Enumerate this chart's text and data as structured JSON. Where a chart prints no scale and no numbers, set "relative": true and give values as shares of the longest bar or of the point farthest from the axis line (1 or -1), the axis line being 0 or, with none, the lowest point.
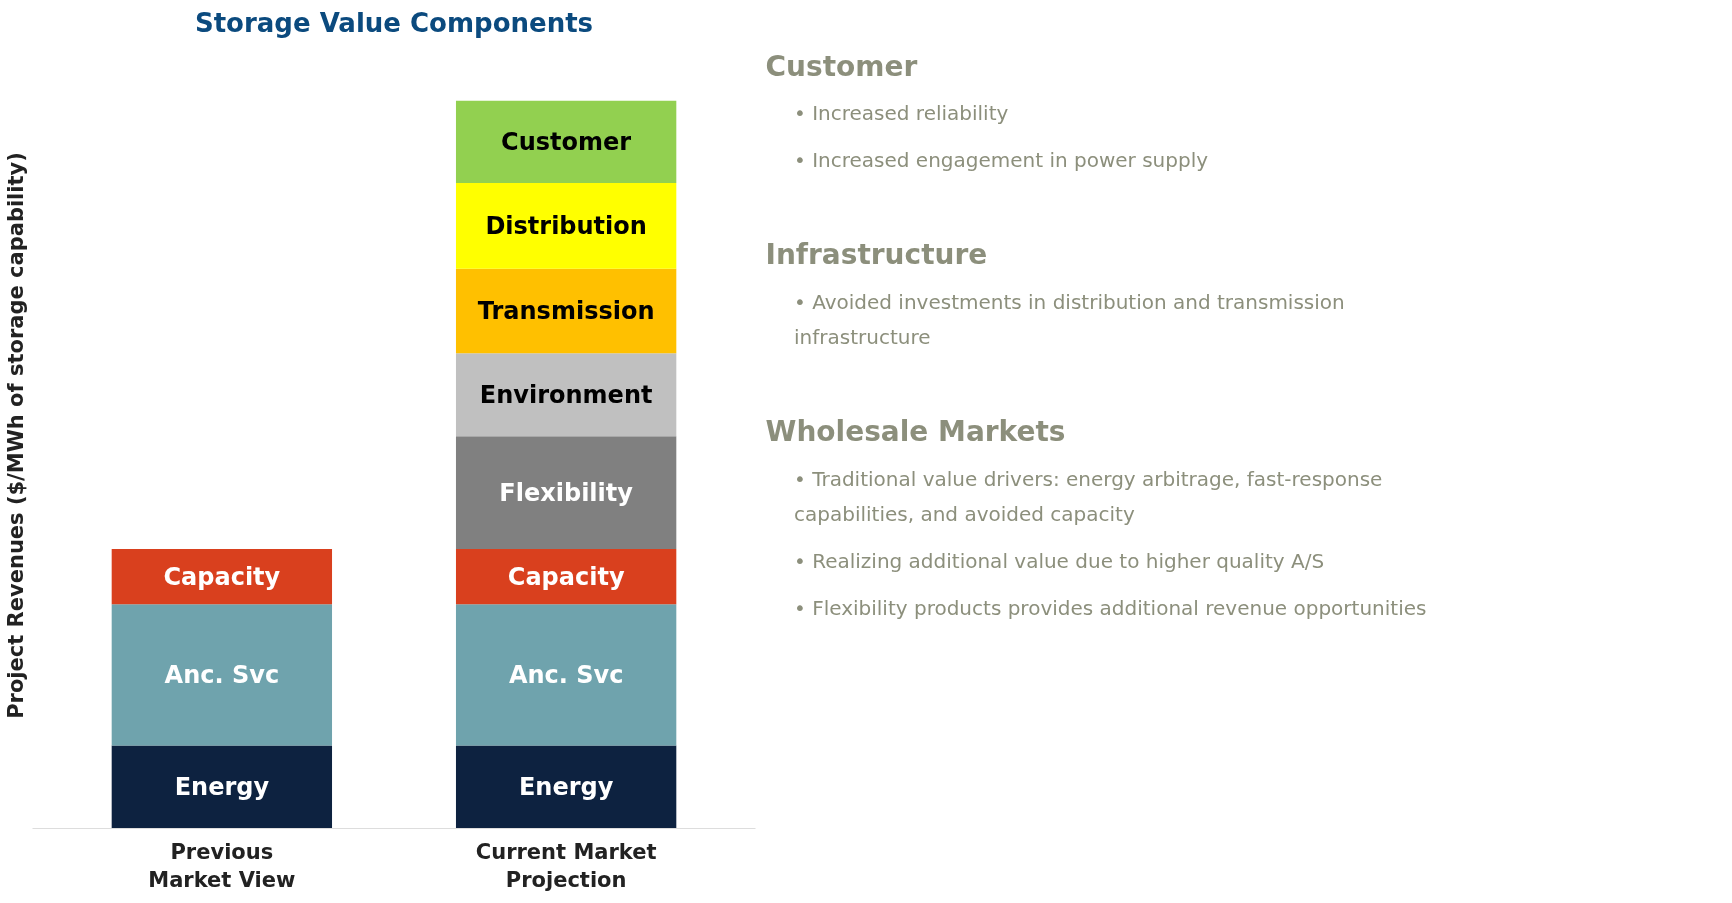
{
  "chart_data": {
    "type": "bar",
    "title": "Storage Value Components",
    "ylabel": "Project Revenues ($/MWh of storage capability)",
    "relative": true,
    "stacked": true,
    "categories": [
      "Previous Market View",
      "Current Market Projection"
    ],
    "series": [
      {
        "name": "Energy",
        "color": "#0d2240",
        "values": [
          0.114,
          0.114
        ]
      },
      {
        "name": "Anc. Svc",
        "color": "#6fa3ad",
        "values": [
          0.194,
          0.194
        ]
      },
      {
        "name": "Capacity",
        "color": "#d9401e",
        "values": [
          0.076,
          0.076
        ]
      },
      {
        "name": "Flexibility",
        "color": "#808080",
        "values": [
          null,
          0.155
        ]
      },
      {
        "name": "Environment",
        "color": "#c0c0c0",
        "values": [
          null,
          0.114
        ]
      },
      {
        "name": "Transmission",
        "color": "#ffc000",
        "values": [
          null,
          0.116
        ]
      },
      {
        "name": "Distribution",
        "color": "#ffff00",
        "values": [
          null,
          0.118
        ]
      },
      {
        "name": "Customer",
        "color": "#92d050",
        "values": [
          null,
          0.113
        ]
      }
    ],
    "annotations": [
      "Customer",
      "• Increased reliability",
      "• Increased engagement in power supply",
      "Infrastructure",
      "• Avoided investments in distribution and transmission infrastructure",
      "Wholesale Markets",
      "• Traditional value drivers: energy arbitrage, fast-response capabilities, and avoided capacity",
      "• Realizing additional value due to higher quality A/S",
      "• Flexibility products provides additional revenue opportunities"
    ]
  }
}
